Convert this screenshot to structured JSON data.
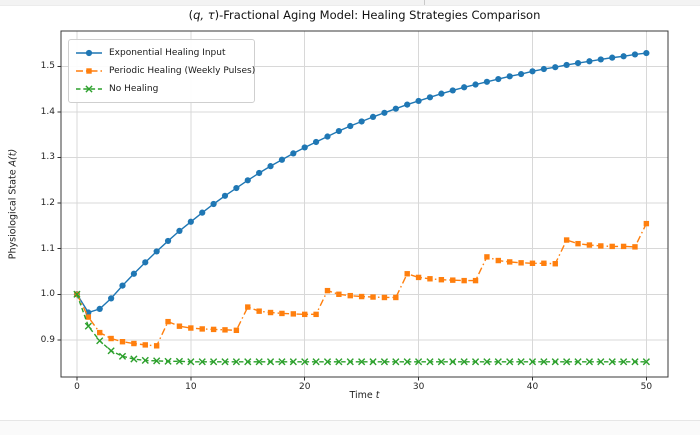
{
  "chart_data": {
    "type": "line",
    "title": {
      "pre": "(",
      "math": "q, τ",
      "post": ")-Fractional Aging Model: Healing Strategies Comparison"
    },
    "xlabel": {
      "pre": "Time ",
      "math": "t",
      "post": ""
    },
    "ylabel": {
      "pre": "Physiological State ",
      "math": "A(t)",
      "post": ""
    },
    "grid": true,
    "legend_position": "upper left",
    "xlim": [
      -1.4,
      51.9
    ],
    "ylim": [
      0.8186,
      1.5774
    ],
    "x_ticks": [
      0,
      10,
      20,
      30,
      40,
      50
    ],
    "x_tick_labels": [
      "0",
      "10",
      "20",
      "30",
      "40",
      "50"
    ],
    "y_ticks": [
      0.9,
      1.0,
      1.1,
      1.2,
      1.3,
      1.4,
      1.5
    ],
    "y_tick_labels": [
      "0.9",
      "1.0",
      "1.1",
      "1.2",
      "1.3",
      "1.4",
      "1.5"
    ],
    "x": [
      0,
      1,
      2,
      3,
      4,
      5,
      6,
      7,
      8,
      9,
      10,
      11,
      12,
      13,
      14,
      15,
      16,
      17,
      18,
      19,
      20,
      21,
      22,
      23,
      24,
      25,
      26,
      27,
      28,
      29,
      30,
      31,
      32,
      33,
      34,
      35,
      36,
      37,
      38,
      39,
      40,
      41,
      42,
      43,
      44,
      45,
      46,
      47,
      48,
      49,
      50
    ],
    "series": [
      {
        "name": "Exponential Healing Input",
        "color": "#1f77b4",
        "marker": "circle",
        "linestyle": "solid",
        "values": [
          1.0,
          0.96,
          0.968,
          0.991,
          1.019,
          1.045,
          1.07,
          1.094,
          1.117,
          1.139,
          1.159,
          1.179,
          1.198,
          1.216,
          1.233,
          1.25,
          1.266,
          1.281,
          1.295,
          1.309,
          1.322,
          1.334,
          1.346,
          1.358,
          1.369,
          1.379,
          1.389,
          1.398,
          1.407,
          1.416,
          1.424,
          1.432,
          1.44,
          1.447,
          1.454,
          1.46,
          1.466,
          1.472,
          1.478,
          1.483,
          1.489,
          1.494,
          1.498,
          1.503,
          1.507,
          1.511,
          1.515,
          1.519,
          1.522,
          1.526,
          1.529
        ]
      },
      {
        "name": "Periodic Healing (Weekly Pulses)",
        "color": "#ff7f0e",
        "marker": "square",
        "linestyle": "dashdot",
        "values": [
          1.0,
          0.95,
          0.916,
          0.903,
          0.896,
          0.892,
          0.889,
          0.887,
          0.94,
          0.93,
          0.926,
          0.924,
          0.923,
          0.922,
          0.921,
          0.972,
          0.963,
          0.96,
          0.958,
          0.957,
          0.956,
          0.956,
          1.008,
          1.0,
          0.997,
          0.995,
          0.994,
          0.993,
          0.993,
          1.045,
          1.037,
          1.034,
          1.032,
          1.031,
          1.03,
          1.03,
          1.082,
          1.074,
          1.071,
          1.069,
          1.068,
          1.068,
          1.067,
          1.119,
          1.111,
          1.108,
          1.106,
          1.105,
          1.105,
          1.104,
          1.155
        ]
      },
      {
        "name": "No Healing",
        "color": "#2ca02c",
        "marker": "x",
        "linestyle": "dashed",
        "values": [
          1.0,
          0.93,
          0.898,
          0.876,
          0.864,
          0.858,
          0.855,
          0.854,
          0.853,
          0.853,
          0.852,
          0.852,
          0.852,
          0.852,
          0.852,
          0.852,
          0.852,
          0.852,
          0.852,
          0.852,
          0.852,
          0.852,
          0.852,
          0.852,
          0.852,
          0.852,
          0.852,
          0.852,
          0.852,
          0.852,
          0.852,
          0.852,
          0.852,
          0.852,
          0.852,
          0.852,
          0.852,
          0.852,
          0.852,
          0.852,
          0.852,
          0.852,
          0.852,
          0.852,
          0.852,
          0.852,
          0.852,
          0.852,
          0.852,
          0.852,
          0.852
        ]
      }
    ]
  },
  "page": {
    "frame_color": "#3a3a3a",
    "grid_color": "#d8d8d8",
    "background": "#ffffff"
  }
}
